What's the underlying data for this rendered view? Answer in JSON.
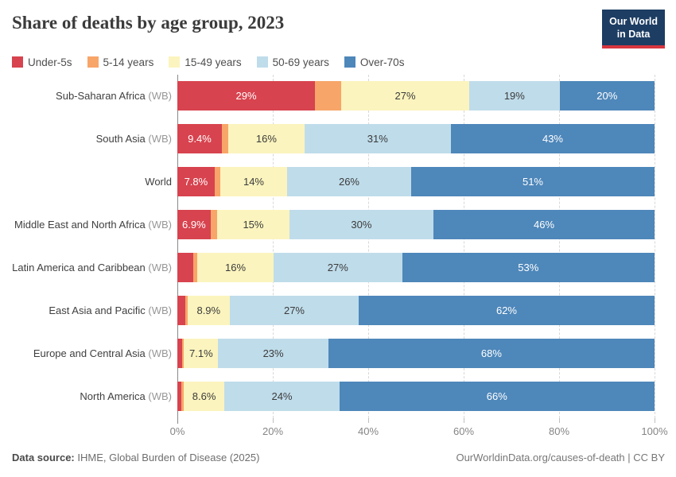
{
  "header": {
    "logo": {
      "line1": "Our World",
      "line2": "in Data"
    }
  },
  "chart_data": {
    "type": "bar",
    "stacked": true,
    "orientation": "horizontal",
    "title": "Share of deaths by age group, 2023",
    "xlim": [
      0,
      100
    ],
    "grid": "dashed-vertical",
    "legend_position": "top",
    "x_ticks": [
      {
        "pos": 0,
        "label": "0%"
      },
      {
        "pos": 20,
        "label": "20%"
      },
      {
        "pos": 40,
        "label": "40%"
      },
      {
        "pos": 60,
        "label": "60%"
      },
      {
        "pos": 80,
        "label": "80%"
      },
      {
        "pos": 100,
        "label": "100%"
      }
    ],
    "series": [
      {
        "name": "Under-5s",
        "color": "#D7434E",
        "label_color": "#FFFFFF"
      },
      {
        "name": "5-14 years",
        "color": "#F8A569",
        "label_color": "#3B3B3B"
      },
      {
        "name": "15-49 years",
        "color": "#FBF4BE",
        "label_color": "#3B3B3B"
      },
      {
        "name": "50-69 years",
        "color": "#BFDCEA",
        "label_color": "#3B3B3B"
      },
      {
        "name": "Over-70s",
        "color": "#4E87BA",
        "label_color": "#FFFFFF"
      }
    ],
    "rows": [
      {
        "name": "Sub-Saharan Africa",
        "suffix": "(WB)",
        "values": [
          29,
          5.5,
          27,
          19,
          20
        ],
        "labels": [
          "29%",
          "",
          "27%",
          "19%",
          "20%"
        ]
      },
      {
        "name": "South Asia",
        "suffix": "(WB)",
        "values": [
          9.4,
          1.4,
          16,
          31,
          43
        ],
        "labels": [
          "9.4%",
          "",
          "16%",
          "31%",
          "43%"
        ]
      },
      {
        "name": "World",
        "suffix": "",
        "values": [
          7.8,
          1.2,
          14,
          26,
          51
        ],
        "labels": [
          "7.8%",
          "",
          "14%",
          "26%",
          "51%"
        ]
      },
      {
        "name": "Middle East and North Africa",
        "suffix": "(WB)",
        "values": [
          6.9,
          1.4,
          15,
          30,
          46
        ],
        "labels": [
          "6.9%",
          "",
          "15%",
          "30%",
          "46%"
        ]
      },
      {
        "name": "Latin America and Caribbean",
        "suffix": "(WB)",
        "values": [
          3.3,
          0.9,
          16,
          27,
          53
        ],
        "labels": [
          "",
          "",
          "16%",
          "27%",
          "53%"
        ]
      },
      {
        "name": "East Asia and Pacific",
        "suffix": "(WB)",
        "values": [
          1.6,
          0.5,
          8.9,
          27,
          62
        ],
        "labels": [
          "",
          "",
          "8.9%",
          "27%",
          "62%"
        ]
      },
      {
        "name": "Europe and Central Asia",
        "suffix": "(WB)",
        "values": [
          1.0,
          0.4,
          7.1,
          23,
          68
        ],
        "labels": [
          "",
          "",
          "7.1%",
          "23%",
          "68%"
        ]
      },
      {
        "name": "North America",
        "suffix": "(WB)",
        "values": [
          0.9,
          0.4,
          8.6,
          24,
          66
        ],
        "labels": [
          "",
          "",
          "8.6%",
          "24%",
          "66%"
        ]
      }
    ]
  },
  "footer": {
    "source_label": "Data source:",
    "source_text": "IHME, Global Burden of Disease (2025)",
    "link": "OurWorldinData.org/causes-of-death",
    "separator": " | ",
    "license": "CC BY"
  }
}
